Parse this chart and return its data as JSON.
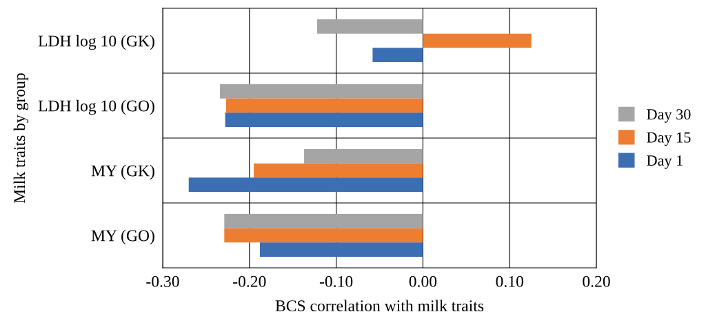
{
  "chart_data": {
    "type": "bar",
    "orientation": "horizontal",
    "xlabel": "BCS correlation with milk traits",
    "ylabel": "Milk traits by group",
    "categories": [
      "LDH log 10 (GK)",
      "LDH log 10 (GO)",
      "MY (GK)",
      "MY (GO)"
    ],
    "series": [
      {
        "name": "Day 30",
        "color": "#a5a5a5",
        "values": [
          -0.122,
          -0.234,
          -0.137,
          -0.229
        ]
      },
      {
        "name": "Day 15",
        "color": "#ed7d31",
        "values": [
          0.125,
          -0.227,
          -0.195,
          -0.229
        ]
      },
      {
        "name": "Day 1",
        "color": "#3c6eb4",
        "values": [
          -0.058,
          -0.228,
          -0.27,
          -0.188
        ]
      }
    ],
    "xlim": [
      -0.3,
      0.2
    ],
    "xticks": [
      {
        "value": -0.3,
        "label": "-0.30"
      },
      {
        "value": -0.2,
        "label": "-0.20"
      },
      {
        "value": -0.1,
        "label": "-0.10"
      },
      {
        "value": 0,
        "label": "0.00"
      },
      {
        "value": 0.1,
        "label": "0.10"
      },
      {
        "value": 0.2,
        "label": "0.20"
      }
    ],
    "grid": true,
    "legend": "right"
  }
}
